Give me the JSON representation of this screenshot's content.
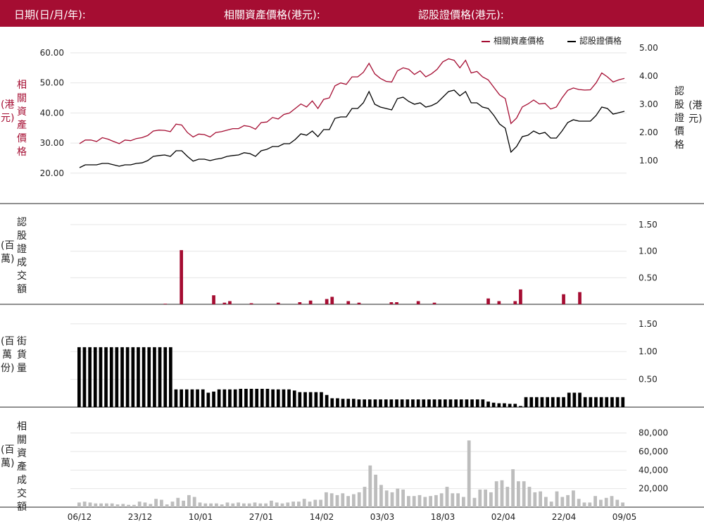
{
  "header": {
    "date_label": "日期(日/月/年):",
    "underlying_label": "相關資產價格(港元):",
    "warrant_label": "認股證價格(港元):"
  },
  "colors": {
    "accent": "#a50d32",
    "warrant": "#000000",
    "volume": "#bdbdbd",
    "grid": "#e6e6e6"
  },
  "legend": {
    "underlying": "相關資產價格",
    "warrant": "認股證價格"
  },
  "axis_titles": {
    "left_price": "相關資產價格",
    "left_price_unit": "(港元)",
    "right_price": "認股證價格",
    "right_price_unit": "(港元)",
    "warrant_turnover": "認股證成交額",
    "warrant_turnover_unit": "(百萬)",
    "outstanding": "街貨量",
    "outstanding_unit": "(百萬份)",
    "underlying_turnover": "相關資產成交額",
    "underlying_turnover_unit": "(百萬)"
  },
  "chart_data": [
    {
      "type": "line",
      "x_ticks": [
        "06/12",
        "23/12",
        "10/01",
        "27/01",
        "14/02",
        "03/03",
        "18/03",
        "02/04",
        "22/04",
        "09/05"
      ],
      "y_left_ticks": [
        "20.00",
        "30.00",
        "40.00",
        "50.00",
        "60.00"
      ],
      "y_right_ticks": [
        "1.00",
        "2.00",
        "3.00",
        "4.00",
        "5.00"
      ],
      "ylim_left": [
        14.8,
        63.5
      ],
      "ylim_right": [
        0,
        5.2
      ],
      "grid": true,
      "legend_position": "top-right",
      "series": [
        {
          "name": "相關資產價格",
          "axis": "left",
          "values": [
            29.8,
            31.0,
            31.0,
            30.5,
            31.8,
            31.3,
            30.5,
            29.8,
            31.0,
            30.8,
            31.5,
            31.8,
            32.5,
            34.0,
            34.3,
            34.2,
            33.8,
            36.3,
            36.0,
            33.5,
            32.0,
            33.0,
            32.8,
            32.0,
            33.5,
            33.8,
            34.3,
            34.8,
            34.8,
            35.8,
            35.5,
            34.6,
            36.8,
            37.0,
            38.5,
            38.0,
            39.5,
            40.0,
            41.5,
            43.0,
            42.0,
            44.0,
            41.5,
            44.5,
            45.0,
            49.0,
            50.0,
            49.5,
            52.0,
            52.0,
            53.5,
            56.5,
            53.0,
            51.5,
            50.5,
            50.3,
            54.0,
            55.0,
            54.5,
            52.8,
            54.0,
            52.0,
            53.0,
            54.5,
            57.0,
            58.0,
            57.5,
            55.0,
            57.5,
            53.3,
            53.8,
            52.0,
            51.0,
            48.5,
            46.0,
            44.8,
            36.5,
            38.3,
            42.0,
            43.0,
            44.3,
            43.0,
            43.2,
            41.3,
            42.0,
            45.0,
            47.5,
            48.3,
            47.8,
            47.6,
            47.7,
            50.0,
            53.3,
            52.0,
            50.3,
            51.0,
            51.5
          ]
        },
        {
          "name": "認股證價格",
          "axis": "right",
          "values": [
            0.75,
            0.85,
            0.85,
            0.85,
            0.9,
            0.9,
            0.85,
            0.8,
            0.85,
            0.85,
            0.9,
            0.92,
            1.0,
            1.15,
            1.18,
            1.2,
            1.15,
            1.35,
            1.35,
            1.15,
            0.98,
            1.05,
            1.05,
            1.0,
            1.05,
            1.08,
            1.15,
            1.18,
            1.2,
            1.28,
            1.25,
            1.15,
            1.35,
            1.4,
            1.5,
            1.5,
            1.6,
            1.6,
            1.75,
            1.95,
            1.9,
            2.05,
            1.85,
            2.1,
            2.1,
            2.5,
            2.55,
            2.55,
            2.85,
            2.85,
            3.05,
            3.45,
            3.0,
            2.9,
            2.85,
            2.8,
            3.2,
            3.25,
            3.1,
            3.0,
            3.05,
            2.9,
            2.95,
            3.05,
            3.25,
            3.45,
            3.5,
            3.3,
            3.45,
            3.05,
            3.05,
            2.9,
            2.85,
            2.6,
            2.3,
            2.15,
            1.3,
            1.5,
            1.85,
            1.9,
            2.05,
            1.95,
            2.0,
            1.8,
            1.8,
            2.05,
            2.35,
            2.45,
            2.4,
            2.4,
            2.4,
            2.6,
            2.9,
            2.85,
            2.65,
            2.7,
            2.75
          ]
        }
      ]
    },
    {
      "type": "bar",
      "name": "認股證成交額",
      "y_ticks": [
        "0.50",
        "1.00",
        "1.50"
      ],
      "ylim": [
        0,
        1.75
      ],
      "grid": true,
      "values": [
        0,
        0,
        0,
        0,
        0,
        0,
        0,
        0,
        0,
        0,
        0,
        0,
        0,
        0,
        0,
        0,
        0.01,
        0,
        0,
        1.02,
        0,
        0,
        0,
        0,
        0,
        0.17,
        0,
        0.03,
        0.06,
        0,
        0,
        0,
        0.02,
        0,
        0,
        0,
        0,
        0.03,
        0,
        0,
        0,
        0.04,
        0,
        0.07,
        0,
        0,
        0.1,
        0.14,
        0,
        0,
        0.06,
        0,
        0.03,
        0,
        0,
        0,
        0,
        0,
        0.04,
        0.04,
        0,
        0,
        0,
        0.06,
        0,
        0,
        0.03,
        0,
        0,
        0,
        0,
        0,
        0,
        0,
        0,
        0,
        0.11,
        0,
        0.06,
        0,
        0,
        0.06,
        0.28,
        0,
        0,
        0,
        0,
        0,
        0,
        0,
        0.19,
        0,
        0,
        0.23,
        0,
        0,
        0,
        0,
        0,
        0,
        0,
        0
      ]
    },
    {
      "type": "bar",
      "name": "街貨量",
      "y_ticks": [
        "0.50",
        "1.00",
        "1.50"
      ],
      "ylim": [
        0,
        1.7
      ],
      "grid": true,
      "values": [
        1.08,
        1.08,
        1.08,
        1.08,
        1.08,
        1.08,
        1.08,
        1.08,
        1.08,
        1.08,
        1.08,
        1.08,
        1.08,
        1.08,
        1.08,
        1.08,
        1.08,
        1.08,
        0.32,
        0.32,
        0.32,
        0.32,
        0.32,
        0.32,
        0.26,
        0.28,
        0.32,
        0.32,
        0.32,
        0.32,
        0.33,
        0.33,
        0.33,
        0.33,
        0.33,
        0.33,
        0.32,
        0.32,
        0.32,
        0.32,
        0.3,
        0.27,
        0.27,
        0.27,
        0.27,
        0.27,
        0.22,
        0.16,
        0.16,
        0.15,
        0.15,
        0.15,
        0.14,
        0.14,
        0.14,
        0.14,
        0.14,
        0.14,
        0.14,
        0.14,
        0.14,
        0.14,
        0.14,
        0.14,
        0.14,
        0.14,
        0.14,
        0.14,
        0.14,
        0.14,
        0.14,
        0.14,
        0.14,
        0.14,
        0.14,
        0.14,
        0.1,
        0.08,
        0.07,
        0.07,
        0.06,
        0.06,
        0.02,
        0.18,
        0.18,
        0.18,
        0.18,
        0.18,
        0.18,
        0.18,
        0.18,
        0.26,
        0.26,
        0.26,
        0.18,
        0.18,
        0.18,
        0.18,
        0.18,
        0.18,
        0.18,
        0.18
      ]
    },
    {
      "type": "bar",
      "name": "相關資產成交額",
      "y_ticks": [
        "20,000",
        "40,000",
        "60,000",
        "80,000"
      ],
      "ylim": [
        0,
        95000
      ],
      "grid": true,
      "values": [
        5000,
        6000,
        5000,
        4000,
        4000,
        4000,
        4000,
        3000,
        3500,
        2500,
        2500,
        6000,
        5000,
        3500,
        9000,
        8000,
        3000,
        6000,
        10000,
        7000,
        13000,
        11000,
        5000,
        4000,
        4000,
        4000,
        3000,
        5000,
        4000,
        5000,
        4000,
        4000,
        5000,
        4000,
        4000,
        7000,
        5000,
        4000,
        5000,
        6000,
        6000,
        9000,
        6000,
        8000,
        8000,
        16000,
        15000,
        13000,
        15000,
        12000,
        14000,
        16000,
        22000,
        45000,
        35000,
        24000,
        18000,
        16000,
        20000,
        19000,
        12000,
        12000,
        13000,
        11000,
        12000,
        13000,
        15000,
        22000,
        15000,
        15000,
        11000,
        72000,
        10000,
        19000,
        19000,
        16000,
        28000,
        29000,
        22000,
        41000,
        28000,
        28000,
        22000,
        16000,
        17000,
        11000,
        6000,
        17000,
        11000,
        13000,
        18000,
        9000,
        5000,
        5000,
        12000,
        8000,
        10000,
        12000,
        8000,
        5000
      ]
    }
  ]
}
